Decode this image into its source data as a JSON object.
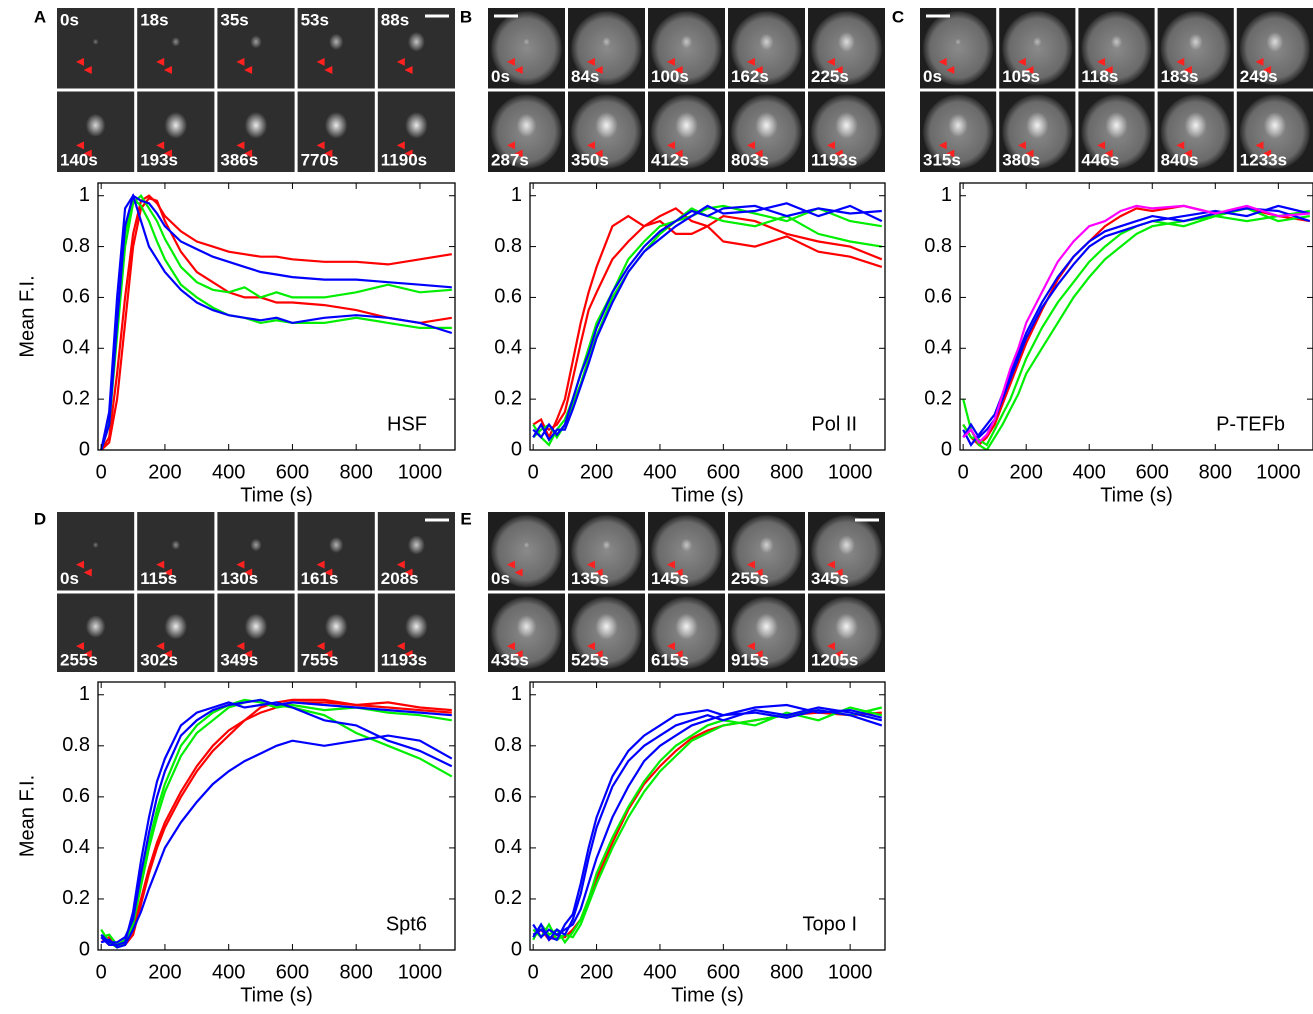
{
  "chart_data": [
    {
      "type": "line",
      "panel": "A",
      "annotation": "HSF",
      "ylabel": "Mean F.I.",
      "xlabel": "Time (s)",
      "image_labels": [
        "0s",
        "18s",
        "35s",
        "53s",
        "88s",
        "140s",
        "193s",
        "386s",
        "770s",
        "1190s"
      ],
      "x": [
        0,
        25,
        50,
        75,
        100,
        125,
        150,
        175,
        200,
        250,
        300,
        350,
        400,
        450,
        500,
        550,
        600,
        700,
        800,
        900,
        1000,
        1100
      ],
      "xlim": [
        -10,
        1110
      ],
      "ylim": [
        0,
        1.05
      ],
      "xticks": [
        0,
        200,
        400,
        600,
        800,
        1000
      ],
      "yticks": [
        0,
        0.2,
        0.4,
        0.6,
        0.8,
        1
      ],
      "series": [
        {
          "color": "#ff0000",
          "values": [
            0,
            0.05,
            0.3,
            0.6,
            0.85,
            0.98,
            1,
            0.97,
            0.92,
            0.86,
            0.82,
            0.8,
            0.78,
            0.77,
            0.76,
            0.76,
            0.75,
            0.74,
            0.74,
            0.73,
            0.75,
            0.77
          ]
        },
        {
          "color": "#ff0000",
          "values": [
            0,
            0.03,
            0.2,
            0.5,
            0.8,
            0.95,
            0.99,
            0.98,
            0.9,
            0.78,
            0.7,
            0.66,
            0.62,
            0.6,
            0.6,
            0.58,
            0.58,
            0.57,
            0.55,
            0.52,
            0.5,
            0.52
          ]
        },
        {
          "color": "#00ee00",
          "values": [
            0,
            0.1,
            0.45,
            0.8,
            0.97,
            1,
            0.95,
            0.9,
            0.83,
            0.72,
            0.66,
            0.63,
            0.62,
            0.64,
            0.6,
            0.62,
            0.6,
            0.6,
            0.62,
            0.65,
            0.62,
            0.63
          ]
        },
        {
          "color": "#00ee00",
          "values": [
            0,
            0.12,
            0.5,
            0.85,
            0.99,
            0.96,
            0.9,
            0.82,
            0.75,
            0.65,
            0.6,
            0.56,
            0.53,
            0.52,
            0.5,
            0.51,
            0.5,
            0.5,
            0.52,
            0.5,
            0.48,
            0.48
          ]
        },
        {
          "color": "#0000ff",
          "values": [
            0,
            0.15,
            0.6,
            0.95,
            1,
            0.9,
            0.8,
            0.75,
            0.7,
            0.63,
            0.58,
            0.55,
            0.53,
            0.52,
            0.51,
            0.52,
            0.5,
            0.52,
            0.53,
            0.52,
            0.5,
            0.46
          ]
        },
        {
          "color": "#0000ff",
          "values": [
            0,
            0.1,
            0.5,
            0.88,
            1,
            0.98,
            0.97,
            0.93,
            0.88,
            0.82,
            0.79,
            0.76,
            0.74,
            0.72,
            0.7,
            0.69,
            0.68,
            0.67,
            0.67,
            0.66,
            0.65,
            0.64
          ]
        }
      ]
    },
    {
      "type": "line",
      "panel": "B",
      "annotation": "Pol II",
      "xlabel": "Time (s)",
      "image_labels": [
        "0s",
        "84s",
        "100s",
        "162s",
        "225s",
        "287s",
        "350s",
        "412s",
        "803s",
        "1193s"
      ],
      "x": [
        0,
        25,
        50,
        75,
        100,
        125,
        150,
        175,
        200,
        250,
        300,
        350,
        400,
        450,
        500,
        550,
        600,
        700,
        800,
        900,
        1000,
        1100
      ],
      "xlim": [
        -10,
        1110
      ],
      "ylim": [
        0,
        1.05
      ],
      "xticks": [
        0,
        200,
        400,
        600,
        800,
        1000
      ],
      "yticks": [
        0,
        0.2,
        0.4,
        0.6,
        0.8,
        1
      ],
      "series": [
        {
          "color": "#ff0000",
          "values": [
            0.1,
            0.12,
            0.05,
            0.12,
            0.2,
            0.35,
            0.5,
            0.62,
            0.72,
            0.88,
            0.92,
            0.88,
            0.9,
            0.85,
            0.85,
            0.88,
            0.82,
            0.8,
            0.84,
            0.78,
            0.76,
            0.72
          ]
        },
        {
          "color": "#ff0000",
          "values": [
            0.05,
            0.1,
            0.08,
            0.1,
            0.15,
            0.28,
            0.42,
            0.55,
            0.62,
            0.75,
            0.82,
            0.88,
            0.92,
            0.95,
            0.9,
            0.88,
            0.92,
            0.9,
            0.85,
            0.82,
            0.8,
            0.75
          ]
        },
        {
          "color": "#00ee00",
          "values": [
            0.1,
            0.05,
            0.02,
            0.08,
            0.12,
            0.2,
            0.3,
            0.4,
            0.5,
            0.62,
            0.75,
            0.82,
            0.88,
            0.9,
            0.95,
            0.92,
            0.9,
            0.88,
            0.92,
            0.85,
            0.82,
            0.8
          ]
        },
        {
          "color": "#00ee00",
          "values": [
            0.05,
            0.08,
            0.1,
            0.05,
            0.1,
            0.18,
            0.26,
            0.36,
            0.45,
            0.6,
            0.7,
            0.78,
            0.85,
            0.9,
            0.92,
            0.95,
            0.96,
            0.93,
            0.9,
            0.95,
            0.9,
            0.88
          ]
        },
        {
          "color": "#0000ff",
          "values": [
            0.08,
            0.05,
            0.1,
            0.06,
            0.1,
            0.2,
            0.3,
            0.38,
            0.48,
            0.62,
            0.72,
            0.8,
            0.86,
            0.9,
            0.94,
            0.92,
            0.95,
            0.96,
            0.92,
            0.95,
            0.93,
            0.94
          ]
        },
        {
          "color": "#0000ff",
          "values": [
            0.05,
            0.1,
            0.04,
            0.08,
            0.08,
            0.16,
            0.25,
            0.34,
            0.44,
            0.58,
            0.7,
            0.78,
            0.83,
            0.88,
            0.92,
            0.96,
            0.93,
            0.94,
            0.97,
            0.92,
            0.96,
            0.9
          ]
        }
      ]
    },
    {
      "type": "line",
      "panel": "C",
      "annotation": "P-TEFb",
      "xlabel": "Time (s)",
      "image_labels": [
        "0s",
        "105s",
        "118s",
        "183s",
        "249s",
        "315s",
        "380s",
        "446s",
        "840s",
        "1233s"
      ],
      "x": [
        0,
        25,
        50,
        75,
        100,
        125,
        150,
        175,
        200,
        250,
        300,
        350,
        400,
        450,
        500,
        550,
        600,
        700,
        800,
        900,
        1000,
        1100
      ],
      "xlim": [
        -10,
        1110
      ],
      "ylim": [
        0,
        1.05
      ],
      "xticks": [
        0,
        200,
        400,
        600,
        800,
        1000
      ],
      "yticks": [
        0,
        0.2,
        0.4,
        0.6,
        0.8,
        1
      ],
      "series": [
        {
          "color": "#ff0000",
          "values": [
            0.1,
            0.05,
            0.02,
            0.05,
            0.1,
            0.18,
            0.26,
            0.34,
            0.42,
            0.55,
            0.67,
            0.76,
            0.82,
            0.88,
            0.92,
            0.95,
            0.94,
            0.96,
            0.93,
            0.95,
            0.92,
            0.9
          ]
        },
        {
          "color": "#00ee00",
          "values": [
            0.2,
            0.08,
            0.02,
            0,
            0.05,
            0.1,
            0.16,
            0.22,
            0.3,
            0.4,
            0.5,
            0.6,
            0.68,
            0.75,
            0.8,
            0.85,
            0.88,
            0.9,
            0.92,
            0.9,
            0.92,
            0.94
          ]
        },
        {
          "color": "#00ee00",
          "values": [
            0.1,
            0.05,
            0.04,
            0.02,
            0.08,
            0.14,
            0.2,
            0.28,
            0.36,
            0.48,
            0.58,
            0.66,
            0.74,
            0.8,
            0.85,
            0.88,
            0.9,
            0.88,
            0.92,
            0.95,
            0.9,
            0.92
          ]
        },
        {
          "color": "#0000ff",
          "values": [
            0.05,
            0.1,
            0.05,
            0.08,
            0.12,
            0.2,
            0.28,
            0.36,
            0.44,
            0.56,
            0.65,
            0.73,
            0.8,
            0.84,
            0.86,
            0.88,
            0.9,
            0.92,
            0.94,
            0.92,
            0.96,
            0.93
          ]
        },
        {
          "color": "#0000ff",
          "values": [
            0.08,
            0.02,
            0.06,
            0.1,
            0.14,
            0.22,
            0.3,
            0.38,
            0.46,
            0.58,
            0.68,
            0.76,
            0.82,
            0.86,
            0.88,
            0.9,
            0.92,
            0.9,
            0.93,
            0.95,
            0.94,
            0.9
          ]
        },
        {
          "color": "#ff00ff",
          "values": [
            0.05,
            0.08,
            0.03,
            0.06,
            0.12,
            0.22,
            0.32,
            0.4,
            0.5,
            0.62,
            0.74,
            0.82,
            0.88,
            0.9,
            0.94,
            0.96,
            0.95,
            0.96,
            0.93,
            0.96,
            0.92,
            0.93
          ]
        }
      ]
    },
    {
      "type": "line",
      "panel": "D",
      "annotation": "Spt6",
      "ylabel": "Mean F.I.",
      "xlabel": "Time (s)",
      "image_labels": [
        "0s",
        "115s",
        "130s",
        "161s",
        "208s",
        "255s",
        "302s",
        "349s",
        "755s",
        "1193s"
      ],
      "x": [
        0,
        25,
        50,
        75,
        100,
        125,
        150,
        175,
        200,
        250,
        300,
        350,
        400,
        450,
        500,
        550,
        600,
        700,
        800,
        900,
        1000,
        1100
      ],
      "xlim": [
        -10,
        1110
      ],
      "ylim": [
        0,
        1.05
      ],
      "xticks": [
        0,
        200,
        400,
        600,
        800,
        1000
      ],
      "yticks": [
        0,
        0.2,
        0.4,
        0.6,
        0.8,
        1
      ],
      "series": [
        {
          "color": "#ff0000",
          "values": [
            0.05,
            0.02,
            0.02,
            0.03,
            0.08,
            0.2,
            0.32,
            0.42,
            0.5,
            0.62,
            0.72,
            0.8,
            0.86,
            0.9,
            0.93,
            0.95,
            0.97,
            0.97,
            0.96,
            0.95,
            0.94,
            0.93
          ]
        },
        {
          "color": "#ff0000",
          "values": [
            0.03,
            0.05,
            0.02,
            0.02,
            0.06,
            0.18,
            0.3,
            0.4,
            0.48,
            0.6,
            0.7,
            0.78,
            0.84,
            0.9,
            0.95,
            0.97,
            0.98,
            0.98,
            0.96,
            0.97,
            0.95,
            0.94
          ]
        },
        {
          "color": "#00ee00",
          "values": [
            0.08,
            0.03,
            0.01,
            0.03,
            0.1,
            0.25,
            0.4,
            0.52,
            0.62,
            0.76,
            0.85,
            0.9,
            0.95,
            0.97,
            0.98,
            0.96,
            0.95,
            0.92,
            0.85,
            0.8,
            0.75,
            0.68
          ]
        },
        {
          "color": "#00ee00",
          "values": [
            0.05,
            0.06,
            0.02,
            0.04,
            0.12,
            0.28,
            0.42,
            0.55,
            0.65,
            0.8,
            0.88,
            0.93,
            0.96,
            0.98,
            0.97,
            0.95,
            0.96,
            0.94,
            0.95,
            0.93,
            0.92,
            0.9
          ]
        },
        {
          "color": "#0000ff",
          "values": [
            0.05,
            0.02,
            0.02,
            0.03,
            0.15,
            0.35,
            0.52,
            0.66,
            0.75,
            0.88,
            0.93,
            0.95,
            0.97,
            0.95,
            0.96,
            0.97,
            0.95,
            0.9,
            0.88,
            0.82,
            0.78,
            0.72
          ]
        },
        {
          "color": "#0000ff",
          "values": [
            0.03,
            0.04,
            0.01,
            0.02,
            0.08,
            0.15,
            0.24,
            0.32,
            0.4,
            0.5,
            0.58,
            0.65,
            0.7,
            0.74,
            0.77,
            0.8,
            0.82,
            0.8,
            0.82,
            0.84,
            0.82,
            0.75
          ]
        },
        {
          "color": "#0000ff",
          "values": [
            0.06,
            0.03,
            0.03,
            0.05,
            0.12,
            0.3,
            0.46,
            0.6,
            0.7,
            0.84,
            0.9,
            0.94,
            0.96,
            0.97,
            0.98,
            0.96,
            0.97,
            0.96,
            0.95,
            0.94,
            0.93,
            0.92
          ]
        }
      ]
    },
    {
      "type": "line",
      "panel": "E",
      "annotation": "Topo I",
      "xlabel": "Time (s)",
      "image_labels": [
        "0s",
        "135s",
        "145s",
        "255s",
        "345s",
        "435s",
        "525s",
        "615s",
        "915s",
        "1205s"
      ],
      "x": [
        0,
        25,
        50,
        75,
        100,
        125,
        150,
        175,
        200,
        250,
        300,
        350,
        400,
        450,
        500,
        550,
        600,
        700,
        800,
        900,
        1000,
        1100
      ],
      "xlim": [
        -10,
        1110
      ],
      "ylim": [
        0,
        1.05
      ],
      "xticks": [
        0,
        200,
        400,
        600,
        800,
        1000
      ],
      "yticks": [
        0,
        0.2,
        0.4,
        0.6,
        0.8,
        1
      ],
      "series": [
        {
          "color": "#ff0000",
          "values": [
            0.05,
            0.08,
            0.04,
            0.06,
            0.05,
            0.08,
            0.12,
            0.2,
            0.28,
            0.42,
            0.55,
            0.65,
            0.72,
            0.78,
            0.83,
            0.86,
            0.88,
            0.9,
            0.92,
            0.93,
            0.92,
            0.93
          ]
        },
        {
          "color": "#00ee00",
          "values": [
            0.08,
            0.05,
            0.1,
            0.04,
            0.06,
            0.05,
            0.1,
            0.18,
            0.26,
            0.4,
            0.52,
            0.62,
            0.7,
            0.76,
            0.82,
            0.85,
            0.88,
            0.9,
            0.92,
            0.94,
            0.92,
            0.95
          ]
        },
        {
          "color": "#00ee00",
          "values": [
            0.04,
            0.1,
            0.06,
            0.08,
            0.03,
            0.07,
            0.12,
            0.2,
            0.3,
            0.44,
            0.56,
            0.66,
            0.74,
            0.8,
            0.84,
            0.88,
            0.9,
            0.88,
            0.93,
            0.9,
            0.95,
            0.92
          ]
        },
        {
          "color": "#0000ff",
          "values": [
            0.05,
            0.1,
            0.04,
            0.08,
            0.06,
            0.12,
            0.22,
            0.36,
            0.48,
            0.64,
            0.74,
            0.8,
            0.84,
            0.88,
            0.9,
            0.92,
            0.9,
            0.94,
            0.92,
            0.95,
            0.93,
            0.9
          ]
        },
        {
          "color": "#0000ff",
          "values": [
            0.1,
            0.05,
            0.08,
            0.06,
            0.08,
            0.1,
            0.16,
            0.26,
            0.36,
            0.52,
            0.64,
            0.74,
            0.8,
            0.84,
            0.88,
            0.9,
            0.92,
            0.93,
            0.91,
            0.94,
            0.92,
            0.88
          ]
        },
        {
          "color": "#0000ff",
          "values": [
            0.06,
            0.08,
            0.05,
            0.04,
            0.1,
            0.14,
            0.26,
            0.4,
            0.52,
            0.68,
            0.78,
            0.84,
            0.88,
            0.92,
            0.93,
            0.94,
            0.92,
            0.95,
            0.96,
            0.93,
            0.94,
            0.91
          ]
        }
      ]
    }
  ]
}
